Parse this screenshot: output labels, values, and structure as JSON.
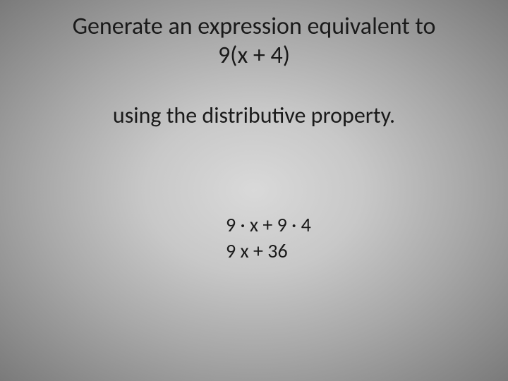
{
  "slide": {
    "title_line1": "Generate an expression equivalent to",
    "title_line2": "9(x + 4)",
    "subtitle": "using the distributive property.",
    "work": {
      "step1": "9 · x + 9 · 4",
      "step2": "9 x + 36"
    }
  },
  "style": {
    "background_gradient_inner": "#d9d9d9",
    "background_gradient_mid": "#a8a8a8",
    "background_gradient_outer": "#7a7a7a",
    "text_color": "#1a1a1a",
    "title_fontsize_pt": 26,
    "subtitle_fontsize_pt": 24,
    "work_fontsize_pt": 21,
    "font_family": "Calibri"
  }
}
